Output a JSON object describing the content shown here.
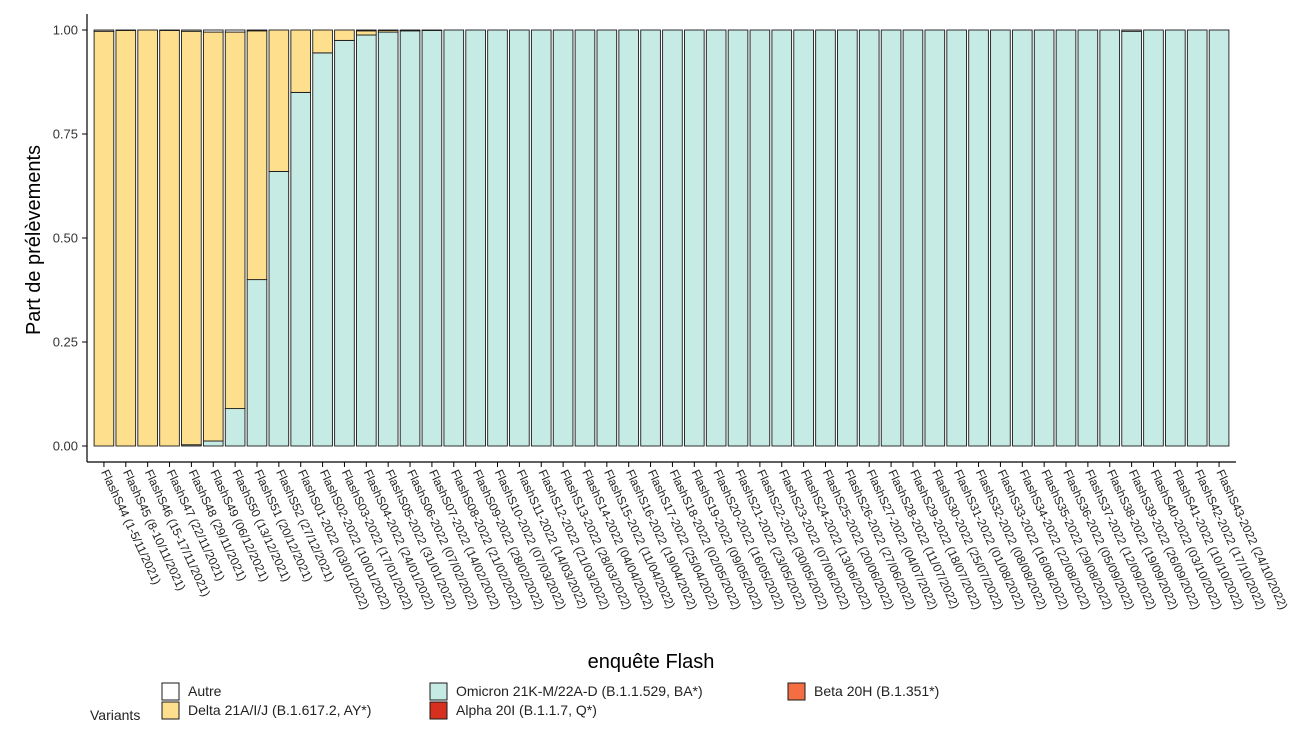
{
  "chart_data": {
    "type": "bar",
    "stacked": true,
    "xlabel": "enquête Flash",
    "ylabel": "Part de prélèvements",
    "ylim": [
      0,
      1
    ],
    "yticks": [
      "0.00",
      "0.25",
      "0.50",
      "0.75",
      "1.00"
    ],
    "grid": false,
    "legend_position": "bottom-left",
    "legend_title": "Variants",
    "categories": [
      "FlashS44 (1-5/11/2021)",
      "FlashS45 (8-10/11/2021)",
      "FlashS46 (15-17/11/2021)",
      "FlashS47 (22/11/2021)",
      "FlashS48 (29/11/2021)",
      "FlashS49 (06/12/2021)",
      "FlashS50 (13/12/2021)",
      "FlashS51 (20/12/2021)",
      "FlashS52 (27/12/2021)",
      "FlashS01-2022 (03/01/2022)",
      "FlashS02-2022 (10/01/2022)",
      "FlashS03-2022 (17/01/2022)",
      "FlashS04-2022 (24/01/2022)",
      "FlashS05-2022 (31/01/2022)",
      "FlashS06-2022 (07/02/2022)",
      "FlashS07-2022 (14/02/2022)",
      "FlashS08-2022 (21/02/2022)",
      "FlashS09-2022 (28/02/2022)",
      "FlashS10-2022 (07/03/2022)",
      "FlashS11-2022 (14/03/2022)",
      "FlashS12-2022 (21/03/2022)",
      "FlashS13-2022 (28/03/2022)",
      "FlashS14-2022 (04/04/2022)",
      "FlashS15-2022 (11/04/2022)",
      "FlashS16-2022 (19/04/2022)",
      "FlashS17-2022 (25/04/2022)",
      "FlashS18-2022 (02/05/2022)",
      "FlashS19-2022 (09/05/2022)",
      "FlashS20-2022 (16/05/2022)",
      "FlashS21-2022 (23/05/2022)",
      "FlashS22-2022 (30/05/2022)",
      "FlashS23-2022 (07/06/2022)",
      "FlashS24-2022 (13/06/2022)",
      "FlashS25-2022 (20/06/2022)",
      "FlashS26-2022 (27/06/2022)",
      "FlashS27-2022 (04/07/2022)",
      "FlashS28-2022 (11/07/2022)",
      "FlashS29-2022 (18/07/2022)",
      "FlashS30-2022 (25/07/2022)",
      "FlashS31-2022 (01/08/2022)",
      "FlashS32-2022 (08/08/2022)",
      "FlashS33-2022 (16/08/2022)",
      "FlashS34-2022 (22/08/2022)",
      "FlashS35-2022 (29/08/2022)",
      "FlashS36-2022 (05/09/2022)",
      "FlashS37-2022 (12/09/2022)",
      "FlashS38-2022 (19/09/2022)",
      "FlashS39-2022 (26/09/2022)",
      "FlashS40-2022 (03/10/2022)",
      "FlashS41-2022 (10/10/2022)",
      "FlashS42-2022 (17/10/2022)",
      "FlashS43-2022 (24/10/2022)"
    ],
    "series": [
      {
        "name": "Omicron 21K-M/22A-D (B.1.1.529, BA*)",
        "color": "#c6ebe4",
        "values": [
          0,
          0,
          0,
          0,
          0.003,
          0.012,
          0.09,
          0.4,
          0.66,
          0.85,
          0.945,
          0.975,
          0.988,
          0.995,
          0.998,
          0.999,
          1,
          1,
          1,
          1,
          1,
          1,
          1,
          1,
          1,
          1,
          1,
          1,
          1,
          1,
          1,
          1,
          1,
          1,
          1,
          1,
          1,
          1,
          1,
          1,
          1,
          1,
          1,
          1,
          1,
          1,
          1,
          0.997,
          1,
          1,
          1,
          1
        ]
      },
      {
        "name": "Delta 21A/I/J (B.1.617.2, AY*)",
        "color": "#fddf8e",
        "values": [
          0.997,
          0.999,
          1,
          0.999,
          0.994,
          0.983,
          0.905,
          0.598,
          0.34,
          0.15,
          0.055,
          0.025,
          0.01,
          0.004,
          0.001,
          0,
          0,
          0,
          0,
          0,
          0,
          0,
          0,
          0,
          0,
          0,
          0,
          0,
          0,
          0,
          0,
          0,
          0,
          0,
          0,
          0,
          0,
          0,
          0,
          0,
          0,
          0,
          0,
          0,
          0,
          0,
          0,
          0,
          0,
          0,
          0,
          0
        ]
      },
      {
        "name": "Alpha 20I (B.1.1.7, Q*)",
        "color": "#d7301f",
        "values": [
          0,
          0,
          0,
          0,
          0,
          0,
          0,
          0,
          0,
          0,
          0,
          0,
          0,
          0,
          0,
          0,
          0,
          0,
          0,
          0,
          0,
          0,
          0,
          0,
          0,
          0,
          0,
          0,
          0,
          0,
          0,
          0,
          0,
          0,
          0,
          0,
          0,
          0,
          0,
          0,
          0,
          0,
          0,
          0,
          0,
          0,
          0,
          0,
          0,
          0,
          0,
          0
        ]
      },
      {
        "name": "Beta 20H (B.1.351*)",
        "color": "#f46d43",
        "values": [
          0,
          0,
          0,
          0,
          0,
          0,
          0,
          0,
          0,
          0,
          0,
          0,
          0,
          0,
          0,
          0,
          0,
          0,
          0,
          0,
          0,
          0,
          0,
          0,
          0,
          0,
          0,
          0,
          0,
          0,
          0,
          0,
          0,
          0,
          0,
          0,
          0,
          0,
          0,
          0,
          0,
          0,
          0,
          0,
          0,
          0,
          0,
          0,
          0,
          0,
          0,
          0
        ]
      },
      {
        "name": "Autre",
        "color": "#ffffff",
        "values": [
          0.003,
          0.001,
          0,
          0.001,
          0.003,
          0.005,
          0.005,
          0.002,
          0,
          0,
          0,
          0,
          0.002,
          0.001,
          0.001,
          0.001,
          0,
          0,
          0,
          0,
          0,
          0,
          0,
          0,
          0,
          0,
          0,
          0,
          0,
          0,
          0,
          0,
          0,
          0,
          0,
          0,
          0,
          0,
          0,
          0,
          0,
          0,
          0,
          0,
          0,
          0,
          0,
          0.003,
          0,
          0,
          0,
          0
        ]
      }
    ],
    "legend_order": [
      "Autre",
      "Delta 21A/I/J (B.1.617.2, AY*)",
      "Omicron 21K-M/22A-D (B.1.1.529, BA*)",
      "Alpha 20I (B.1.1.7, Q*)",
      "Beta 20H (B.1.351*)"
    ]
  }
}
